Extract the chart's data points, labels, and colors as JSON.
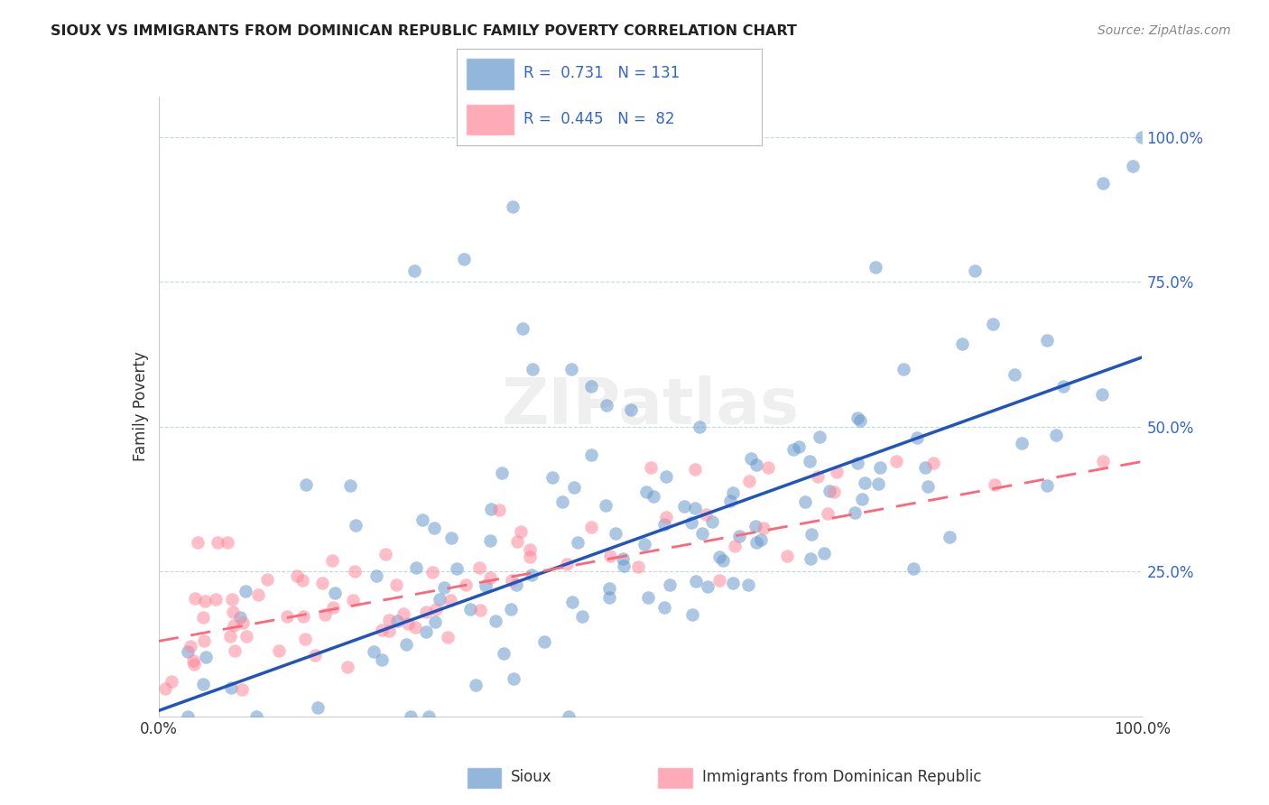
{
  "title": "SIOUX VS IMMIGRANTS FROM DOMINICAN REPUBLIC FAMILY POVERTY CORRELATION CHART",
  "source": "Source: ZipAtlas.com",
  "ylabel": "Family Poverty",
  "ytick_vals": [
    0.25,
    0.5,
    0.75,
    1.0
  ],
  "ytick_labels": [
    "25.0%",
    "50.0%",
    "75.0%",
    "100.0%"
  ],
  "xtick_vals": [
    0.0,
    1.0
  ],
  "xtick_labels": [
    "0.0%",
    "100.0%"
  ],
  "blue_label": "Sioux",
  "pink_label": "Immigrants from Dominican Republic",
  "blue_R": 0.731,
  "blue_N": 131,
  "pink_R": 0.445,
  "pink_N": 82,
  "blue_color": "#6699CC",
  "pink_color": "#FF8899",
  "blue_line_color": "#2255BB",
  "pink_line_color": "#FF6677",
  "blue_slope": 0.61,
  "blue_intercept": 0.01,
  "pink_slope": 0.31,
  "pink_intercept": 0.13,
  "watermark_text": "ZIPatlas",
  "background_color": "#FFFFFF",
  "grid_color": "#BBDDDD",
  "legend_text_color": "#3366CC"
}
